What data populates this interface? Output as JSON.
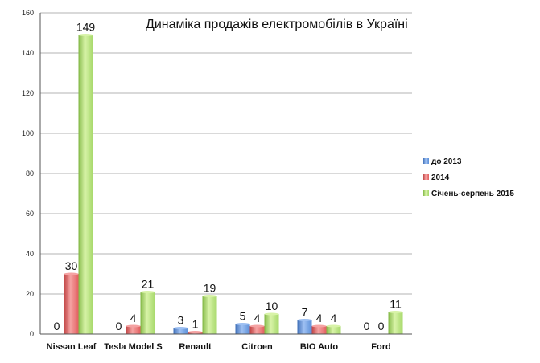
{
  "chart_data": {
    "type": "bar",
    "title": "Динаміка продажів електромобілів в Україні",
    "categories": [
      "Nissan Leaf",
      "Tesla Model S",
      "Renault",
      "Citroen",
      "BIO Auto",
      "Ford"
    ],
    "series": [
      {
        "name": "до 2013",
        "values": [
          0,
          0,
          3,
          5,
          7,
          0
        ],
        "color": "#5b8fd9"
      },
      {
        "name": "2014",
        "values": [
          30,
          4,
          1,
          4,
          4,
          0
        ],
        "color": "#e26060"
      },
      {
        "name": "Січень-серпень 2015",
        "values": [
          149,
          21,
          19,
          10,
          4,
          11
        ],
        "color": "#a6d86a"
      }
    ],
    "data_labels": [
      [
        "0",
        "30",
        "149"
      ],
      [
        "0",
        "4",
        "21"
      ],
      [
        "3",
        "1",
        "19"
      ],
      [
        "5",
        "4",
        "10"
      ],
      [
        "7",
        "4",
        "4"
      ],
      [
        "0",
        "0",
        "11"
      ]
    ],
    "ylim": [
      0,
      160
    ],
    "yticks": [
      0,
      20,
      40,
      60,
      80,
      100,
      120,
      140,
      160
    ],
    "grid": true,
    "legend_position": "right",
    "xlabel": "",
    "ylabel": ""
  }
}
